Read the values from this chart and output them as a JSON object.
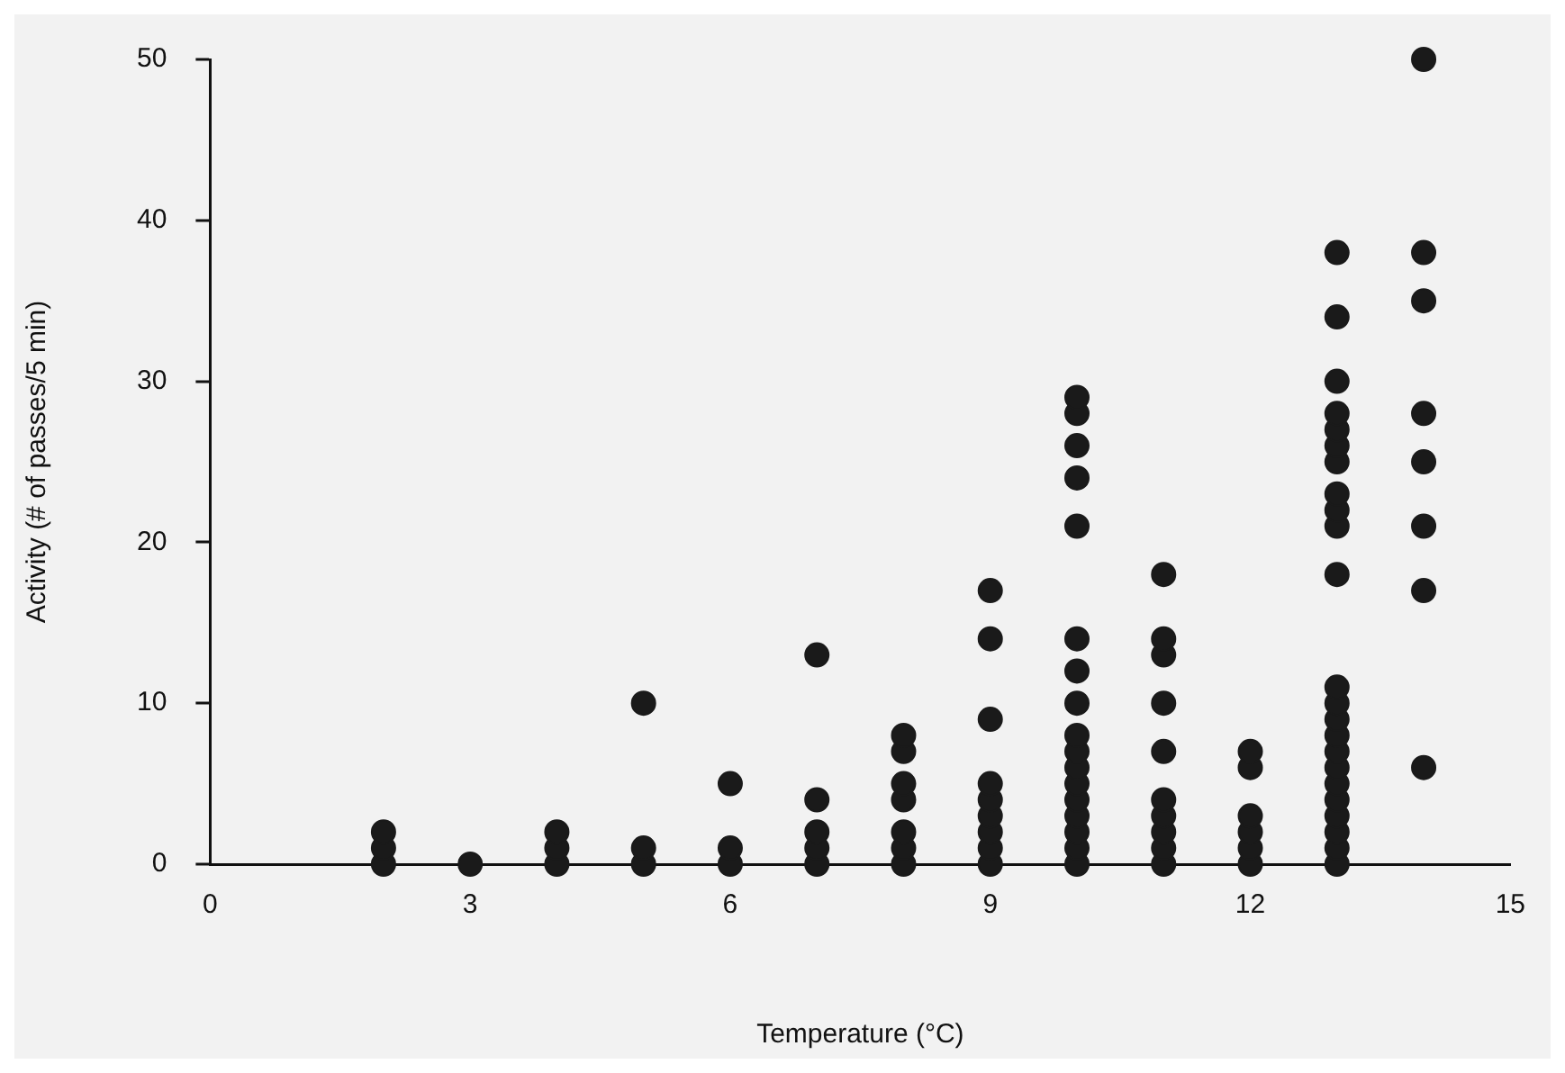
{
  "chart_data": {
    "type": "scatter",
    "xlabel": "Temperature (°C)",
    "ylabel": "Activity (# of passes/5 min)",
    "x": [
      2,
      2,
      2,
      3,
      4,
      4,
      4,
      5,
      5,
      5,
      6,
      6,
      6,
      7,
      7,
      7,
      7,
      7,
      8,
      8,
      8,
      8,
      8,
      8,
      8,
      9,
      9,
      9,
      9,
      9,
      9,
      9,
      9,
      9,
      10,
      10,
      10,
      10,
      10,
      10,
      10,
      10,
      10,
      10,
      10,
      10,
      10,
      10,
      10,
      10,
      10,
      11,
      11,
      11,
      11,
      11,
      11,
      11,
      11,
      11,
      11,
      12,
      12,
      12,
      12,
      12,
      12,
      13,
      13,
      13,
      13,
      13,
      13,
      13,
      13,
      13,
      13,
      13,
      13,
      13,
      13,
      13,
      13,
      13,
      13,
      13,
      13,
      13,
      13,
      13,
      14,
      14,
      14,
      14,
      14,
      14,
      14,
      14
    ],
    "series": [
      {
        "color": "#1a1a1a",
        "values": [
          0,
          1,
          2,
          0,
          0,
          1,
          2,
          0,
          1,
          10,
          0,
          1,
          5,
          0,
          1,
          2,
          4,
          13,
          0,
          1,
          2,
          4,
          5,
          7,
          8,
          0,
          1,
          2,
          3,
          4,
          5,
          9,
          14,
          17,
          0,
          1,
          2,
          3,
          4,
          5,
          6,
          7,
          8,
          10,
          12,
          14,
          21,
          24,
          26,
          28,
          29,
          0,
          1,
          2,
          3,
          4,
          7,
          10,
          13,
          14,
          18,
          0,
          1,
          2,
          3,
          6,
          7,
          0,
          1,
          2,
          3,
          4,
          5,
          6,
          7,
          8,
          9,
          10,
          11,
          18,
          21,
          22,
          23,
          25,
          26,
          27,
          28,
          30,
          34,
          38,
          6,
          17,
          21,
          25,
          28,
          35,
          38,
          50
        ]
      }
    ],
    "xlim": [
      0,
      15
    ],
    "xticks": [
      0,
      3,
      6,
      9,
      12,
      15
    ],
    "ylim": [
      0,
      50
    ],
    "yticks": [
      0,
      10,
      20,
      30,
      40,
      50
    ],
    "grid": false,
    "legend": false,
    "marker": "circle"
  }
}
